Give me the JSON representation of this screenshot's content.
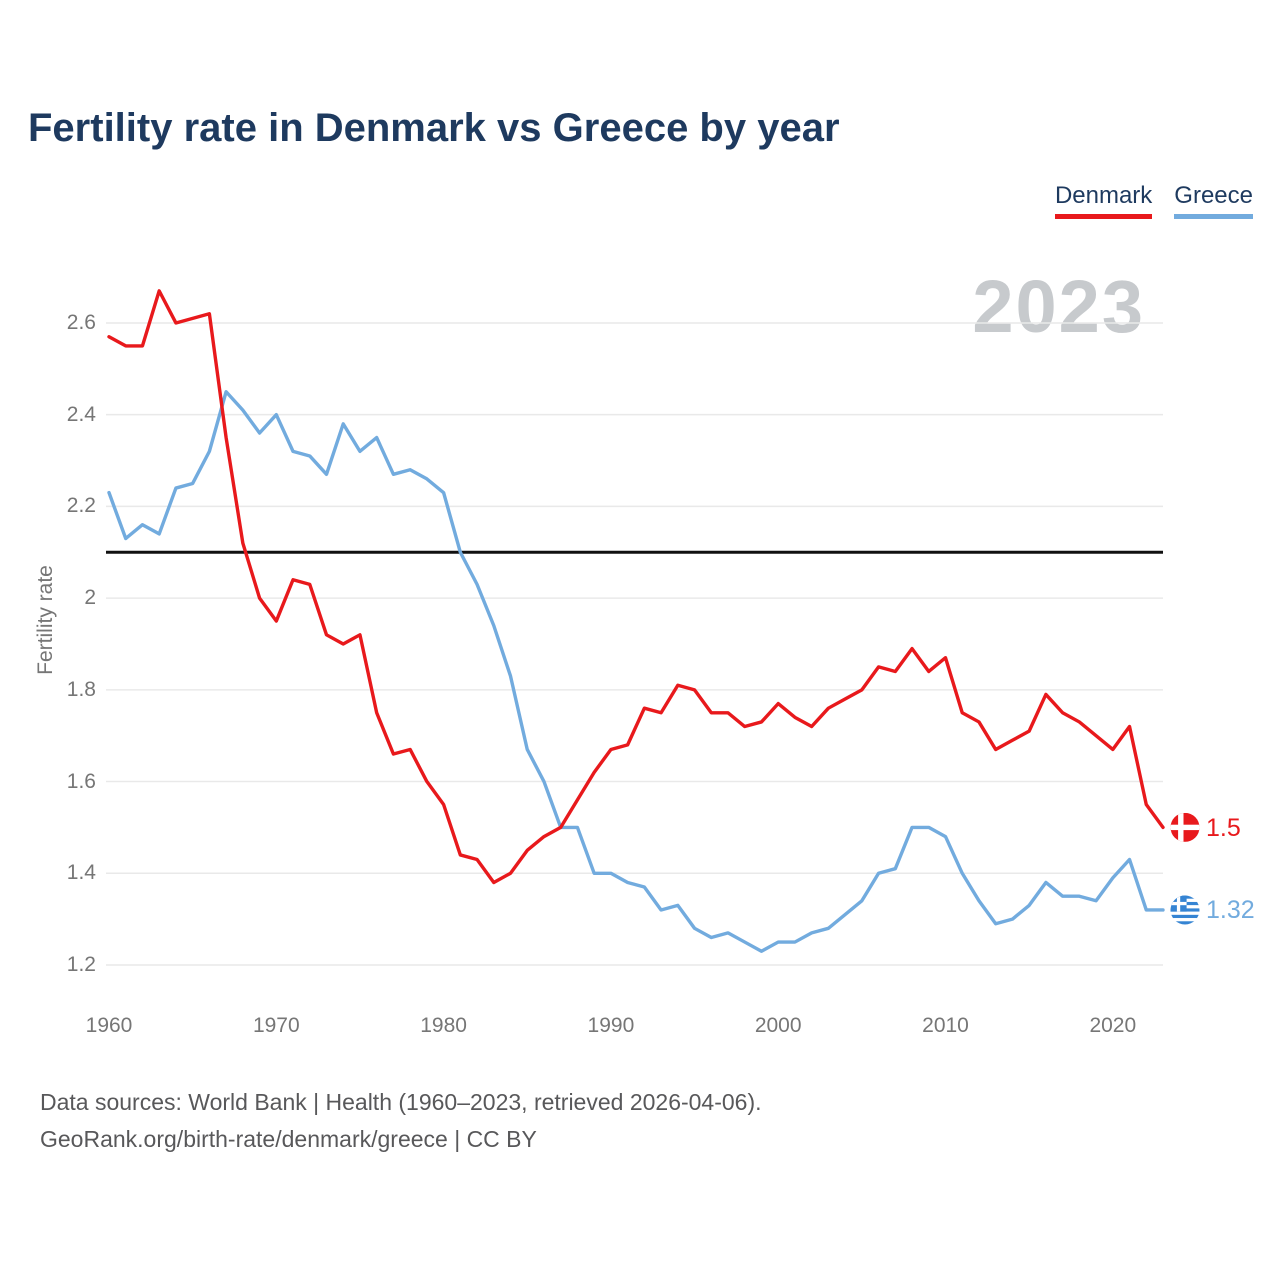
{
  "title": "Fertility rate in Denmark vs Greece by year",
  "legend": {
    "denmark": "Denmark",
    "greece": "Greece"
  },
  "watermark": "2023",
  "icons": {
    "denmark_flag": "denmark-flag-icon",
    "greece_flag": "greece-flag-icon"
  },
  "end_labels": {
    "denmark": "1.5",
    "greece": "1.32"
  },
  "footer": {
    "line1": "Data sources: World Bank | Health (1960–2023, retrieved 2026-04-06).",
    "line2": "GeoRank.org/birth-rate/denmark/greece | CC BY"
  },
  "colors": {
    "denmark": "#e8191c",
    "greece": "#72abde",
    "greece_flag_blue": "#3584d3",
    "flag_white": "#ffffff",
    "reference_line": "#111111",
    "gridline": "#e9e9e9",
    "title_text": "#1e3a5f",
    "axis_text": "#767676",
    "watermark": "#c7cacd",
    "footer_text": "#58585a"
  },
  "chart_data": {
    "type": "line",
    "title": "Fertility rate in Denmark vs Greece by year",
    "xlabel": "",
    "ylabel": "Fertility rate",
    "legend_position": "top-right",
    "grid": "horizontal",
    "xlim": [
      1960,
      2023
    ],
    "ylim": [
      1.2,
      2.6
    ],
    "reference_line": 2.1,
    "x_ticks": [
      {
        "value": 1960,
        "label": "1960"
      },
      {
        "value": 1970,
        "label": "1970"
      },
      {
        "value": 1980,
        "label": "1980"
      },
      {
        "value": 1990,
        "label": "1990"
      },
      {
        "value": 2000,
        "label": "2000"
      },
      {
        "value": 2010,
        "label": "2010"
      },
      {
        "value": 2020,
        "label": "2020"
      }
    ],
    "y_ticks": [
      {
        "value": 2.6,
        "label": "2.6"
      },
      {
        "value": 2.4,
        "label": "2.4"
      },
      {
        "value": 2.2,
        "label": "2.2"
      },
      {
        "value": 2.0,
        "label": "2"
      },
      {
        "value": 1.8,
        "label": "1.8"
      },
      {
        "value": 1.6,
        "label": "1.6"
      },
      {
        "value": 1.4,
        "label": "1.4"
      },
      {
        "value": 1.2,
        "label": "1.2"
      }
    ],
    "x": [
      1960,
      1961,
      1962,
      1963,
      1964,
      1965,
      1966,
      1967,
      1968,
      1969,
      1970,
      1971,
      1972,
      1973,
      1974,
      1975,
      1976,
      1977,
      1978,
      1979,
      1980,
      1981,
      1982,
      1983,
      1984,
      1985,
      1986,
      1987,
      1988,
      1989,
      1990,
      1991,
      1992,
      1993,
      1994,
      1995,
      1996,
      1997,
      1998,
      1999,
      2000,
      2001,
      2002,
      2003,
      2004,
      2005,
      2006,
      2007,
      2008,
      2009,
      2010,
      2011,
      2012,
      2013,
      2014,
      2015,
      2016,
      2017,
      2018,
      2019,
      2020,
      2021,
      2022,
      2023
    ],
    "series": [
      {
        "name": "Greece",
        "color": "#72abde",
        "values": [
          2.23,
          2.13,
          2.16,
          2.14,
          2.24,
          2.25,
          2.32,
          2.45,
          2.41,
          2.36,
          2.4,
          2.32,
          2.31,
          2.27,
          2.38,
          2.32,
          2.35,
          2.27,
          2.28,
          2.26,
          2.23,
          2.1,
          2.03,
          1.94,
          1.83,
          1.67,
          1.6,
          1.5,
          1.5,
          1.4,
          1.4,
          1.38,
          1.37,
          1.32,
          1.33,
          1.28,
          1.26,
          1.27,
          1.25,
          1.23,
          1.25,
          1.25,
          1.27,
          1.28,
          1.31,
          1.34,
          1.4,
          1.41,
          1.5,
          1.5,
          1.48,
          1.4,
          1.34,
          1.29,
          1.3,
          1.33,
          1.38,
          1.35,
          1.35,
          1.34,
          1.39,
          1.43,
          1.32,
          1.32
        ]
      },
      {
        "name": "Denmark",
        "color": "#e8191c",
        "values": [
          2.57,
          2.55,
          2.55,
          2.67,
          2.6,
          2.61,
          2.62,
          2.35,
          2.12,
          2.0,
          1.95,
          2.04,
          2.03,
          1.92,
          1.9,
          1.92,
          1.75,
          1.66,
          1.67,
          1.6,
          1.55,
          1.44,
          1.43,
          1.38,
          1.4,
          1.45,
          1.48,
          1.5,
          1.56,
          1.62,
          1.67,
          1.68,
          1.76,
          1.75,
          1.81,
          1.8,
          1.75,
          1.75,
          1.72,
          1.73,
          1.77,
          1.74,
          1.72,
          1.76,
          1.78,
          1.8,
          1.85,
          1.84,
          1.89,
          1.84,
          1.87,
          1.75,
          1.73,
          1.67,
          1.69,
          1.71,
          1.79,
          1.75,
          1.73,
          1.7,
          1.67,
          1.72,
          1.55,
          1.5
        ]
      }
    ]
  }
}
